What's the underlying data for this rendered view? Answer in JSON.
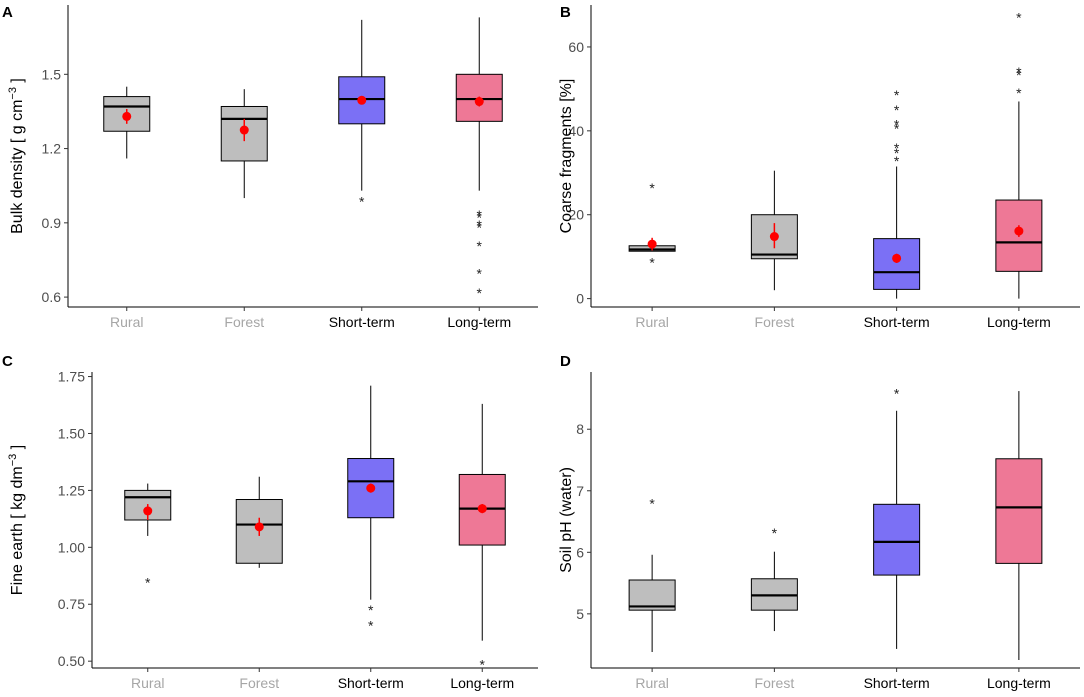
{
  "figure": {
    "colors": {
      "Rural": "#bebebe",
      "Forest": "#bebebe",
      "Short-term": "#7b70f5",
      "Long-term": "#ee7896",
      "mean": "#ff0000",
      "muted_label": "#a6a6a6"
    }
  },
  "chart_data": [
    {
      "panel": "A",
      "type": "box",
      "ylabel": "Bulk density [ g cm^-3 ]",
      "ylabel_parts": {
        "main": "Bulk density [ g  cm",
        "sup": "−3",
        "tail": " ]"
      },
      "ylim": [
        0.56,
        1.78
      ],
      "yticks": [
        0.6,
        0.9,
        1.2,
        1.5
      ],
      "ytick_labels": [
        "0.6",
        "0.9",
        "1.2",
        "1.5"
      ],
      "categories": [
        "Rural",
        "Forest",
        "Short-term",
        "Long-term"
      ],
      "boxes": [
        {
          "q1": 1.27,
          "median": 1.37,
          "q3": 1.41,
          "lo": 1.16,
          "hi": 1.45,
          "mean": 1.33,
          "ci": [
            1.3,
            1.36
          ],
          "outliers": []
        },
        {
          "q1": 1.15,
          "median": 1.32,
          "q3": 1.37,
          "lo": 1.0,
          "hi": 1.44,
          "mean": 1.275,
          "ci": [
            1.23,
            1.32
          ],
          "outliers": []
        },
        {
          "q1": 1.3,
          "median": 1.4,
          "q3": 1.49,
          "lo": 1.03,
          "hi": 1.72,
          "mean": 1.395,
          "ci": [
            1.38,
            1.41
          ],
          "outliers": [
            0.99
          ]
        },
        {
          "q1": 1.31,
          "median": 1.4,
          "q3": 1.5,
          "lo": 1.03,
          "hi": 1.73,
          "mean": 1.39,
          "ci": [
            1.37,
            1.41
          ],
          "outliers": [
            0.935,
            0.925,
            0.895,
            0.885,
            0.81,
            0.7,
            0.62
          ]
        }
      ]
    },
    {
      "panel": "B",
      "type": "box",
      "ylabel": "Coarse fragments [%]",
      "ylabel_parts": {
        "main": "Coarse fragments [%]",
        "sup": "",
        "tail": ""
      },
      "ylim": [
        -2,
        70
      ],
      "yticks": [
        0,
        20,
        40,
        60
      ],
      "ytick_labels": [
        "0",
        "20",
        "40",
        "60"
      ],
      "categories": [
        "Rural",
        "Forest",
        "Short-term",
        "Long-term"
      ],
      "boxes": [
        {
          "q1": 11.3,
          "median": 11.7,
          "q3": 12.6,
          "lo": 11.3,
          "hi": 12.6,
          "mean": 13.0,
          "ci": [
            11.5,
            14.5
          ],
          "outliers": [
            26.6,
            8.8
          ]
        },
        {
          "q1": 9.5,
          "median": 10.5,
          "q3": 20.0,
          "lo": 2.0,
          "hi": 30.5,
          "mean": 14.8,
          "ci": [
            12.0,
            18.0
          ],
          "outliers": []
        },
        {
          "q1": 2.2,
          "median": 6.3,
          "q3": 14.3,
          "lo": 0.0,
          "hi": 31.5,
          "mean": 9.6,
          "ci": [
            8.5,
            10.7
          ],
          "outliers": [
            33.0,
            35.0,
            36.2,
            40.8,
            41.7,
            45.2,
            48.8
          ]
        },
        {
          "q1": 6.5,
          "median": 13.4,
          "q3": 23.5,
          "lo": 0.0,
          "hi": 47.0,
          "mean": 16.1,
          "ci": [
            14.7,
            17.5
          ],
          "outliers": [
            49.3,
            53.5,
            54.3,
            67.3
          ]
        }
      ]
    },
    {
      "panel": "C",
      "type": "box",
      "ylabel": "Fine earth [ kg dm^-3 ]",
      "ylabel_parts": {
        "main": "Fine earth [ kg  dm",
        "sup": "−3",
        "tail": " ]"
      },
      "ylim": [
        0.47,
        1.77
      ],
      "yticks": [
        0.5,
        0.75,
        1.0,
        1.25,
        1.5,
        1.75
      ],
      "ytick_labels": [
        "0.50",
        "0.75",
        "1.00",
        "1.25",
        "1.50",
        "1.75"
      ],
      "categories": [
        "Rural",
        "Forest",
        "Short-term",
        "Long-term"
      ],
      "boxes": [
        {
          "q1": 1.12,
          "median": 1.22,
          "q3": 1.25,
          "lo": 1.05,
          "hi": 1.28,
          "mean": 1.16,
          "ci": [
            1.12,
            1.19
          ],
          "outliers": [
            0.85
          ]
        },
        {
          "q1": 0.93,
          "median": 1.1,
          "q3": 1.21,
          "lo": 0.91,
          "hi": 1.31,
          "mean": 1.09,
          "ci": [
            1.05,
            1.13
          ],
          "outliers": []
        },
        {
          "q1": 1.13,
          "median": 1.29,
          "q3": 1.39,
          "lo": 0.77,
          "hi": 1.71,
          "mean": 1.26,
          "ci": [
            1.24,
            1.28
          ],
          "outliers": [
            0.73,
            0.66
          ]
        },
        {
          "q1": 1.01,
          "median": 1.17,
          "q3": 1.32,
          "lo": 0.59,
          "hi": 1.63,
          "mean": 1.17,
          "ci": [
            1.15,
            1.19
          ],
          "outliers": [
            0.49
          ]
        }
      ]
    },
    {
      "panel": "D",
      "type": "box",
      "ylabel": "Soil pH (water)",
      "ylabel_parts": {
        "main": "Soil pH (water)",
        "sup": "",
        "tail": ""
      },
      "ylim": [
        4.12,
        8.93
      ],
      "yticks": [
        5,
        6,
        7,
        8
      ],
      "ytick_labels": [
        "5",
        "6",
        "7",
        "8"
      ],
      "categories": [
        "Rural",
        "Forest",
        "Short-term",
        "Long-term"
      ],
      "boxes": [
        {
          "q1": 5.06,
          "median": 5.12,
          "q3": 5.55,
          "lo": 4.38,
          "hi": 5.96,
          "mean": null,
          "ci": null,
          "outliers": [
            6.81
          ]
        },
        {
          "q1": 5.06,
          "median": 5.3,
          "q3": 5.57,
          "lo": 4.72,
          "hi": 6.01,
          "mean": null,
          "ci": null,
          "outliers": [
            6.33
          ]
        },
        {
          "q1": 5.63,
          "median": 6.17,
          "q3": 6.78,
          "lo": 4.43,
          "hi": 8.3,
          "mean": null,
          "ci": null,
          "outliers": [
            8.6
          ]
        },
        {
          "q1": 5.82,
          "median": 6.73,
          "q3": 7.52,
          "lo": 4.25,
          "hi": 8.62,
          "mean": null,
          "ci": null,
          "outliers": []
        }
      ]
    }
  ]
}
